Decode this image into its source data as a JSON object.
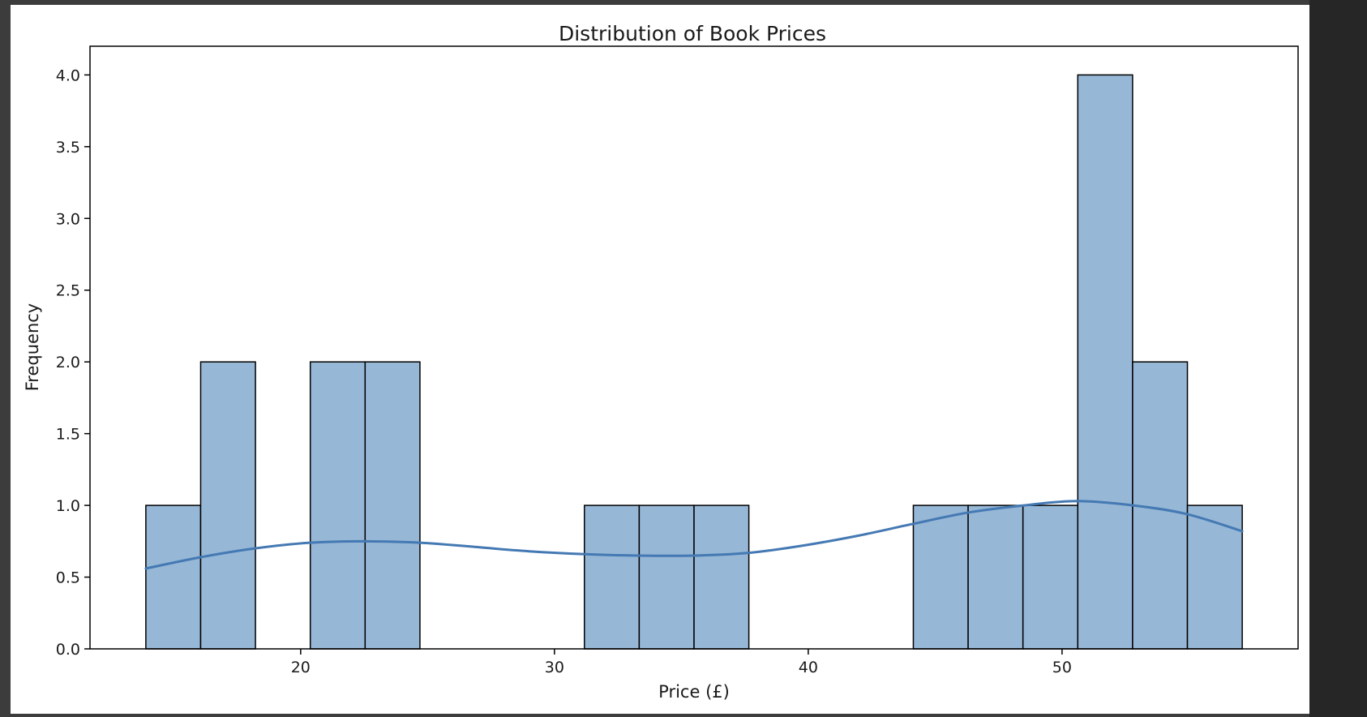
{
  "chart_data": {
    "type": "bar",
    "title": "Distribution of Book Prices",
    "xlabel": "Price (£)",
    "ylabel": "Frequency",
    "xlim": [
      11.7,
      59.3
    ],
    "ylim": [
      0,
      4.2
    ],
    "xticks": [
      20,
      30,
      40,
      50
    ],
    "yticks": [
      0.0,
      0.5,
      1.0,
      1.5,
      2.0,
      2.5,
      3.0,
      3.5,
      4.0
    ],
    "ytick_labels": [
      "0.0",
      "0.5",
      "1.0",
      "1.5",
      "2.0",
      "2.5",
      "3.0",
      "3.5",
      "4.0"
    ],
    "bin_edges": [
      13.9,
      16.06,
      18.22,
      20.38,
      22.54,
      24.7,
      26.86,
      29.02,
      31.18,
      33.34,
      35.5,
      37.66,
      39.82,
      41.98,
      44.14,
      46.3,
      48.46,
      50.62,
      52.78,
      54.94,
      57.1
    ],
    "values": [
      1,
      2,
      0,
      2,
      2,
      0,
      0,
      0,
      1,
      1,
      1,
      0,
      0,
      0,
      1,
      1,
      1,
      4,
      2,
      1
    ],
    "kde": {
      "x": [
        13.9,
        16.1,
        18.2,
        20.4,
        22.5,
        24.7,
        26.9,
        29.0,
        31.2,
        33.3,
        35.5,
        37.7,
        39.8,
        42.0,
        44.1,
        46.3,
        48.5,
        50.6,
        52.8,
        54.9,
        57.1
      ],
      "y": [
        0.56,
        0.64,
        0.7,
        0.74,
        0.75,
        0.74,
        0.71,
        0.68,
        0.66,
        0.65,
        0.65,
        0.67,
        0.72,
        0.79,
        0.87,
        0.95,
        1.0,
        1.03,
        1.0,
        0.94,
        0.82
      ]
    },
    "bar_color": "#96b7d6",
    "bar_edge_color": "#000000",
    "kde_color": "#4479b3",
    "grid": false,
    "legend": "none"
  }
}
